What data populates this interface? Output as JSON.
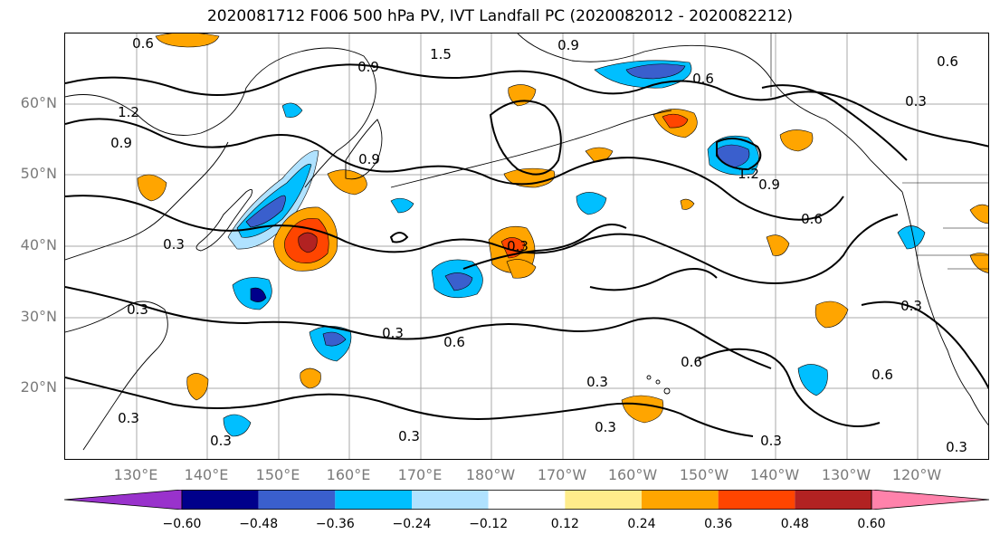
{
  "title": "2020081712 F006 500 hPa PV, IVT Landfall PC (2020082012 - 2020082212)",
  "lat_labels": [
    "60°N",
    "50°N",
    "40°N",
    "30°N",
    "20°N"
  ],
  "lon_labels": [
    "130°E",
    "140°E",
    "150°E",
    "160°E",
    "170°E",
    "180°W",
    "170°W",
    "160°W",
    "150°W",
    "140°W",
    "130°W",
    "120°W"
  ],
  "contour_labels": [
    "0.6",
    "1.5",
    "0.9",
    "0.9",
    "0.6",
    "1.2",
    "0.9",
    "0.3",
    "0.3",
    "0.6",
    "1.2",
    "0.9",
    "0.6",
    "0.3",
    "0.3",
    "0.6",
    "0.3",
    "0.3",
    "0.6",
    "0.3",
    "0.3",
    "0.3",
    "0.3",
    "0.3",
    "0.3",
    "0.9",
    "0.6",
    "0.3"
  ],
  "colorbar": {
    "ticks": [
      "−0.60",
      "−0.48",
      "−0.36",
      "−0.24",
      "−0.12",
      "0.12",
      "0.24",
      "0.36",
      "0.48",
      "0.60"
    ],
    "colors": [
      "#9932cc",
      "#00008b",
      "#3a5fcd",
      "#00bfff",
      "#b0e2ff",
      "#ffffff",
      "#ffec8b",
      "#ffa500",
      "#ff4500",
      "#b22222",
      "#ff82ab"
    ]
  },
  "shading_colors": {
    "neg_light": "#b0e2ff",
    "neg_mid": "#00bfff",
    "neg_strong": "#3a5fcd",
    "neg_max": "#00008b",
    "pos_light": "#ffec8b",
    "pos_mid": "#ffa500",
    "pos_strong": "#ff4500",
    "pos_max": "#b22222"
  }
}
